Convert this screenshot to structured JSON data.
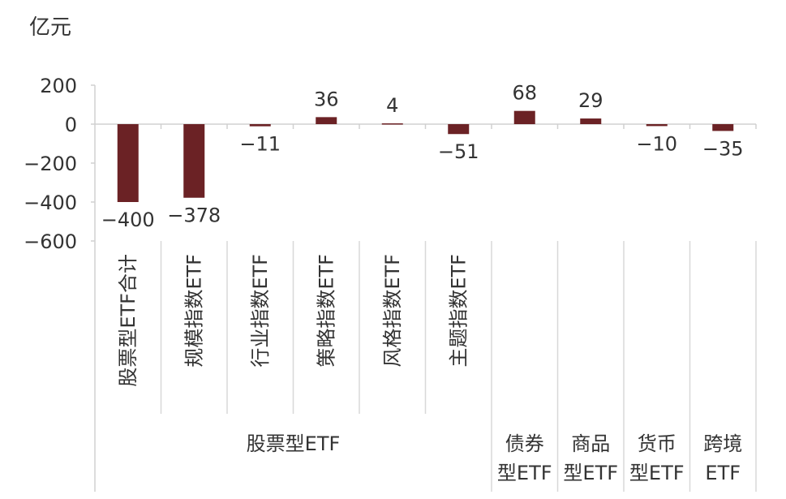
{
  "chart_data": {
    "type": "bar",
    "unit_label": "亿元",
    "categories": [
      "股票型ETF合计",
      "规模指数ETF",
      "行业指数ETF",
      "策略指数ETF",
      "风格指数ETF",
      "主题指数ETF",
      "债券型ETF",
      "商品型ETF",
      "货币型ETF",
      "跨境ETF"
    ],
    "category_label_lines": [
      [
        "股票型ETF合计"
      ],
      [
        "规模指数ETF"
      ],
      [
        "行业指数ETF"
      ],
      [
        "策略指数ETF"
      ],
      [
        "风格指数ETF"
      ],
      [
        "主题指数ETF"
      ],
      [
        "债券",
        "型ETF"
      ],
      [
        "商品",
        "型ETF"
      ],
      [
        "货币",
        "型ETF"
      ],
      [
        "跨境",
        "ETF"
      ]
    ],
    "values": [
      -400,
      -378,
      -11,
      36,
      4,
      -51,
      68,
      29,
      -10,
      -35
    ],
    "value_labels": [
      "-400",
      "-378",
      "-11",
      "36",
      "4",
      "-51",
      "68",
      "29",
      "-10",
      "-35"
    ],
    "group_label": "股票型ETF",
    "group_span": [
      0,
      5
    ],
    "y_ticks": [
      200,
      0,
      -200,
      -400,
      -600
    ],
    "y_tick_labels": [
      "200",
      "0",
      "-200",
      "-400",
      "-600"
    ],
    "ylim": [
      -600,
      200
    ],
    "bar_color": "#6b2225",
    "grid": false,
    "legend": "none"
  }
}
